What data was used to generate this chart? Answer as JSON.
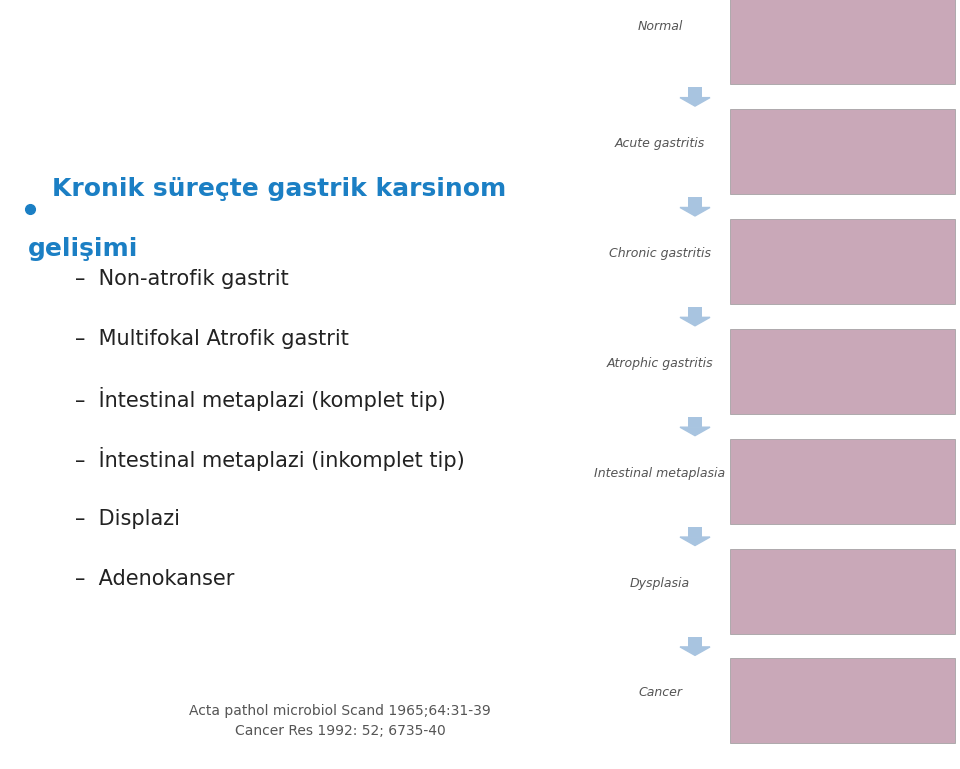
{
  "background_color": "#ffffff",
  "bullet_text_line1": "Kronik süreçte gastrik karsinom",
  "bullet_text_line2": "gelişimi",
  "bullet_text_color": "#1B7FC4",
  "sub_items": [
    "Non-atrofik gastrit",
    "Multifokal Atrofik gastrit",
    "İntestinal metaplazi (komplet tip)",
    "İntestinal metaplazi (inkomplet tip)",
    "Displazi",
    "Adenokanser"
  ],
  "sub_item_color": "#222222",
  "reference_line1": "Acta pathol microbiol Scand 1965;64:31-39",
  "reference_line2": "Cancer Res 1992: 52; 6735-40",
  "reference_color": "#555555",
  "right_labels": [
    "Normal",
    "Acute gastritis",
    "Chronic gastritis",
    "Atrophic gastritis",
    "Intestinal metaplasia",
    "Dysplasia",
    "Cancer"
  ],
  "right_label_color": "#555555",
  "arrow_color": "#A8C4E0",
  "image_box_color": "#C9A8B8",
  "figsize": [
    9.6,
    7.69
  ]
}
